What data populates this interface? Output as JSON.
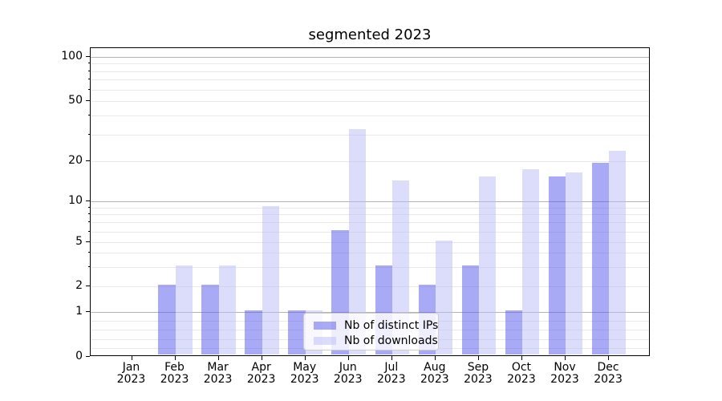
{
  "title": "segmented 2023",
  "chart_data": {
    "type": "bar",
    "categories": [
      "Jan",
      "Feb",
      "Mar",
      "Apr",
      "May",
      "Jun",
      "Jul",
      "Aug",
      "Sep",
      "Oct",
      "Nov",
      "Dec"
    ],
    "category_year": "2023",
    "series": [
      {
        "name": "Nb of distinct IPs",
        "color": "rgba(84,86,238,0.5)",
        "solid_color": "#a9aaf6",
        "values": [
          0,
          2,
          2,
          1,
          1,
          6,
          3,
          2,
          3,
          1,
          15,
          19
        ]
      },
      {
        "name": "Nb of downloads",
        "color": "rgba(186,188,248,0.5)",
        "solid_color": "#dcddfb",
        "values": [
          0,
          3,
          3,
          9,
          1,
          32,
          14,
          5,
          15,
          17,
          16,
          23
        ]
      }
    ],
    "yscale": "symlog",
    "yticks": [
      0,
      1,
      2,
      5,
      10,
      20,
      50,
      100
    ],
    "ylim": [
      0,
      115
    ],
    "grid": "major+minor horizontal",
    "legend_position": "lower-center",
    "grid_major_color": "#b4b4b4",
    "grid_minor_color": "#e9e9e9"
  }
}
